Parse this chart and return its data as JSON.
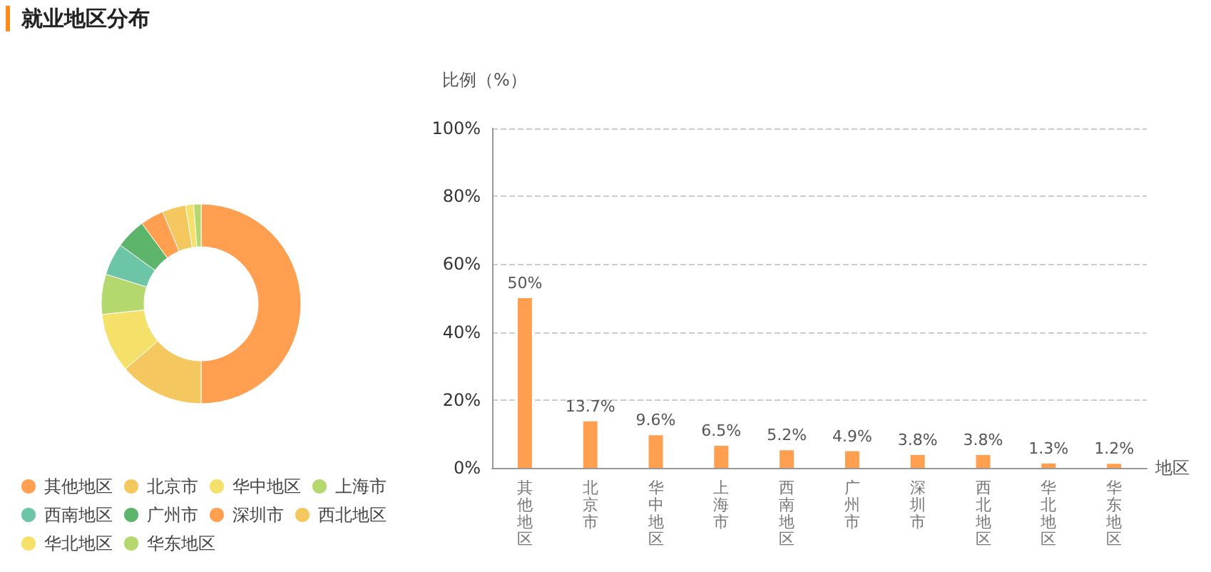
{
  "chart_data": [
    {
      "type": "donut",
      "title": "就业地区分布",
      "categories": [
        "其他地区",
        "北京市",
        "华中地区",
        "上海市",
        "西南地区",
        "广州市",
        "深圳市",
        "西北地区",
        "华北地区",
        "华东地区"
      ],
      "values": [
        50,
        13.7,
        9.6,
        6.5,
        5.2,
        4.9,
        3.8,
        3.8,
        1.3,
        1.2
      ],
      "colors": [
        "#ff9f4f",
        "#f5c85f",
        "#f5e06a",
        "#b5d86e",
        "#6cc5a6",
        "#5cb56b",
        "#ff9f4f",
        "#f5c85f",
        "#f5e06a",
        "#b5d86e"
      ],
      "legend": "bottom"
    },
    {
      "type": "bar",
      "xlabel": "地区",
      "ylabel": "比例（%）",
      "categories": [
        "其他地区",
        "北京市",
        "华中地区",
        "上海市",
        "西南地区",
        "广州市",
        "深圳市",
        "西北地区",
        "华北地区",
        "华东地区"
      ],
      "series": [
        {
          "color": "#ff9f4f",
          "values": [
            50,
            13.7,
            9.6,
            6.5,
            5.2,
            4.9,
            3.8,
            3.8,
            1.3,
            1.2
          ],
          "value_labels": [
            "50%",
            "13.7%",
            "9.6%",
            "6.5%",
            "5.2%",
            "4.9%",
            "3.8%",
            "3.8%",
            "1.3%",
            "1.2%"
          ]
        }
      ],
      "ylim": [
        0,
        100
      ],
      "yticks": [
        {
          "value": 0,
          "label": "0%"
        },
        {
          "value": 20,
          "label": "20%"
        },
        {
          "value": 40,
          "label": "40%"
        },
        {
          "value": 60,
          "label": "60%"
        },
        {
          "value": 80,
          "label": "80%"
        },
        {
          "value": 100,
          "label": "100%"
        }
      ],
      "grid": "y",
      "legend": false
    }
  ]
}
